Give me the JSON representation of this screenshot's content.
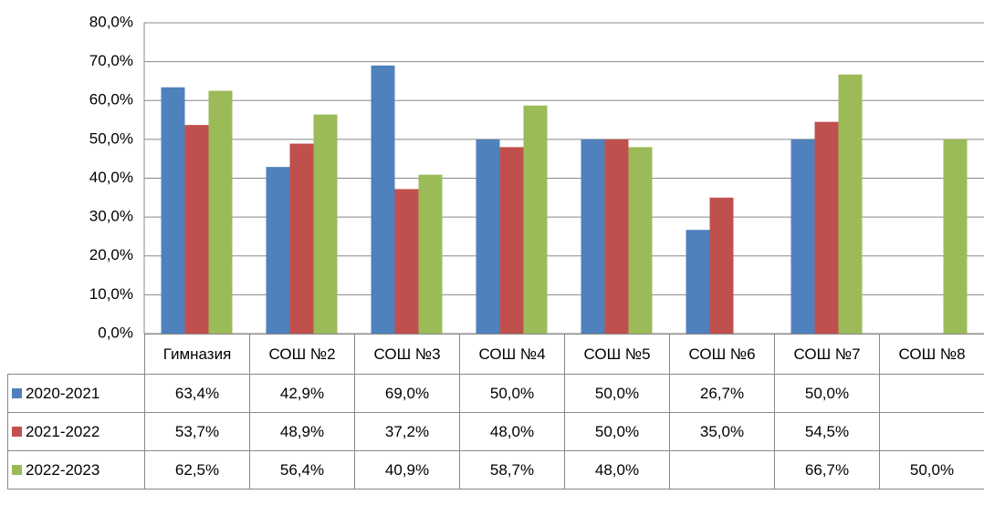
{
  "chart_data": {
    "type": "bar",
    "categories": [
      "Гимназия",
      "СОШ №2",
      "СОШ №3",
      "СОШ №4",
      "СОШ №5",
      "СОШ №6",
      "СОШ №7",
      "СОШ №8"
    ],
    "series": [
      {
        "name": "2020-2021",
        "color": "#4f81bd",
        "values": [
          63.4,
          42.9,
          69.0,
          50.0,
          50.0,
          26.7,
          50.0,
          null
        ],
        "value_labels": [
          "63,4%",
          "42,9%",
          "69,0%",
          "50,0%",
          "50,0%",
          "26,7%",
          "50,0%",
          null
        ]
      },
      {
        "name": "2021-2022",
        "color": "#c0504d",
        "values": [
          53.7,
          48.9,
          37.2,
          48.0,
          50.0,
          35.0,
          54.5,
          null
        ],
        "value_labels": [
          "53,7%",
          "48,9%",
          "37,2%",
          "48,0%",
          "50,0%",
          "35,0%",
          "54,5%",
          null
        ]
      },
      {
        "name": "2022-2023",
        "color": "#9bbb59",
        "values": [
          62.5,
          56.4,
          40.9,
          58.7,
          48.0,
          null,
          66.7,
          50.0
        ],
        "value_labels": [
          "62,5%",
          "56,4%",
          "40,9%",
          "58,7%",
          "48,0%",
          null,
          "66,7%",
          "50,0%"
        ]
      }
    ],
    "ylim": [
      0,
      80
    ],
    "yticks": [
      {
        "value": 0,
        "label": "0,0%"
      },
      {
        "value": 10,
        "label": "10,0%"
      },
      {
        "value": 20,
        "label": "20,0%"
      },
      {
        "value": 30,
        "label": "30,0%"
      },
      {
        "value": 40,
        "label": "40,0%"
      },
      {
        "value": 50,
        "label": "50,0%"
      },
      {
        "value": 60,
        "label": "60,0%"
      },
      {
        "value": 70,
        "label": "70,0%"
      },
      {
        "value": 80,
        "label": "80,0%"
      }
    ],
    "grid": true
  }
}
